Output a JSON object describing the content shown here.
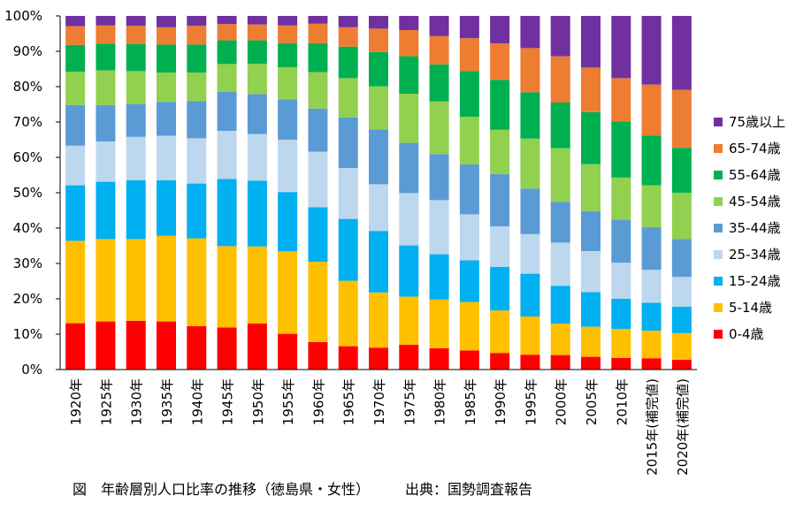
{
  "chart_data": {
    "type": "bar",
    "stacked": true,
    "categories": [
      "1920年",
      "1925年",
      "1930年",
      "1935年",
      "1940年",
      "1945年",
      "1950年",
      "1955年",
      "1960年",
      "1965年",
      "1970年",
      "1975年",
      "1980年",
      "1985年",
      "1990年",
      "1995年",
      "2000年",
      "2005年",
      "2010年",
      "2015年(補完値)",
      "2020年(補完値)"
    ],
    "ylim": [
      0,
      100
    ],
    "yticks": [
      "0%",
      "10%",
      "20%",
      "30%",
      "40%",
      "50%",
      "60%",
      "70%",
      "80%",
      "90%",
      "100%"
    ],
    "grid": false,
    "legend_position": "right",
    "series": [
      {
        "name": "0-4歳",
        "color": "#ff0000",
        "values": [
          13.1,
          13.6,
          13.8,
          13.6,
          12.3,
          11.9,
          13.0,
          10.1,
          7.8,
          6.6,
          6.2,
          7.0,
          6.0,
          5.4,
          4.7,
          4.2,
          4.1,
          3.6,
          3.3,
          3.2,
          2.8
        ]
      },
      {
        "name": "5-14歳",
        "color": "#ffc000",
        "values": [
          23.3,
          23.3,
          23.1,
          24.2,
          24.8,
          23.0,
          21.8,
          23.3,
          22.7,
          18.5,
          15.6,
          13.6,
          13.8,
          13.7,
          12.0,
          10.8,
          8.9,
          8.5,
          8.2,
          7.8,
          7.5
        ]
      },
      {
        "name": "15-24歳",
        "color": "#00b0f0",
        "values": [
          15.7,
          16.2,
          16.6,
          15.7,
          15.5,
          19.0,
          18.6,
          16.8,
          15.4,
          17.5,
          17.4,
          14.5,
          12.8,
          11.8,
          12.3,
          12.1,
          10.7,
          9.8,
          8.5,
          7.9,
          7.5
        ]
      },
      {
        "name": "25-34歳",
        "color": "#bdd7ee",
        "values": [
          11.2,
          11.4,
          12.3,
          12.6,
          12.8,
          13.6,
          13.2,
          14.8,
          15.7,
          14.4,
          13.2,
          14.8,
          15.3,
          13.0,
          11.5,
          11.2,
          12.2,
          11.6,
          10.2,
          9.3,
          8.4
        ]
      },
      {
        "name": "35-44歳",
        "color": "#5b9bd5",
        "values": [
          11.5,
          10.3,
          9.3,
          9.6,
          10.5,
          11.1,
          11.3,
          11.4,
          12.2,
          14.3,
          15.5,
          14.2,
          13.0,
          14.1,
          14.8,
          12.9,
          11.5,
          11.3,
          12.2,
          12.1,
          10.7
        ]
      },
      {
        "name": "45-54歳",
        "color": "#92d050",
        "values": [
          9.4,
          9.8,
          9.3,
          8.3,
          8.1,
          7.8,
          8.6,
          9.1,
          10.3,
          11.1,
          12.2,
          13.9,
          14.9,
          13.5,
          12.5,
          14.1,
          15.2,
          13.3,
          11.9,
          11.8,
          13.1
        ]
      },
      {
        "name": "55-64歳",
        "color": "#00b050",
        "values": [
          7.6,
          7.6,
          7.6,
          7.9,
          7.9,
          6.7,
          6.6,
          6.8,
          8.2,
          8.9,
          9.7,
          10.6,
          10.5,
          12.9,
          14.1,
          13.1,
          12.9,
          14.7,
          15.9,
          14.1,
          12.7
        ]
      },
      {
        "name": "65-74歳",
        "color": "#ed7d31",
        "values": [
          5.3,
          5.1,
          5.2,
          4.9,
          5.3,
          4.6,
          4.5,
          5.0,
          5.5,
          5.5,
          6.6,
          7.4,
          8.0,
          9.3,
          10.3,
          12.5,
          13.1,
          12.6,
          12.2,
          14.4,
          16.4
        ]
      },
      {
        "name": "75歳以上",
        "color": "#7030a0",
        "values": [
          2.9,
          2.7,
          2.8,
          3.2,
          2.8,
          2.3,
          2.4,
          2.7,
          2.2,
          3.2,
          3.6,
          4.0,
          5.7,
          6.3,
          7.8,
          9.1,
          11.4,
          14.6,
          17.6,
          19.4,
          20.9
        ]
      }
    ]
  },
  "caption": {
    "title": "図　年齢層別人口比率の推移（徳島県・女性）",
    "source": "出典：国勢調査報告"
  }
}
